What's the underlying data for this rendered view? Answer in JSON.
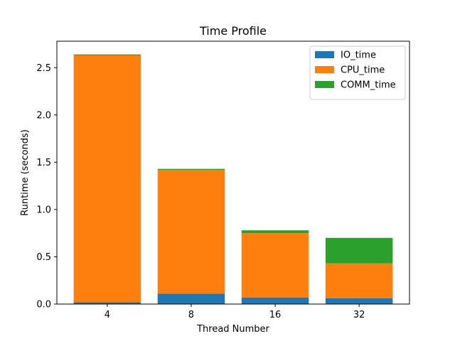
{
  "chart_data": {
    "type": "bar",
    "stacked": true,
    "title": "Time Profile",
    "xlabel": "Thread Number",
    "ylabel": "Runtime (seconds)",
    "categories": [
      "4",
      "8",
      "16",
      "32"
    ],
    "ylim": [
      0,
      2.78
    ],
    "yticks": [
      0.0,
      0.5,
      1.0,
      1.5,
      2.0,
      2.5
    ],
    "ytick_labels": [
      "0.0",
      "0.5",
      "1.0",
      "1.5",
      "2.0",
      "2.5"
    ],
    "legend_position": "top-right",
    "grid": false,
    "series": [
      {
        "name": "IO_time",
        "color": "#1f77b4",
        "values": [
          0.02,
          0.11,
          0.07,
          0.06
        ]
      },
      {
        "name": "CPU_time",
        "color": "#ff7f0e",
        "values": [
          2.61,
          1.31,
          0.68,
          0.37
        ]
      },
      {
        "name": "COMM_time",
        "color": "#2ca02c",
        "values": [
          0.01,
          0.01,
          0.03,
          0.27
        ]
      }
    ]
  }
}
